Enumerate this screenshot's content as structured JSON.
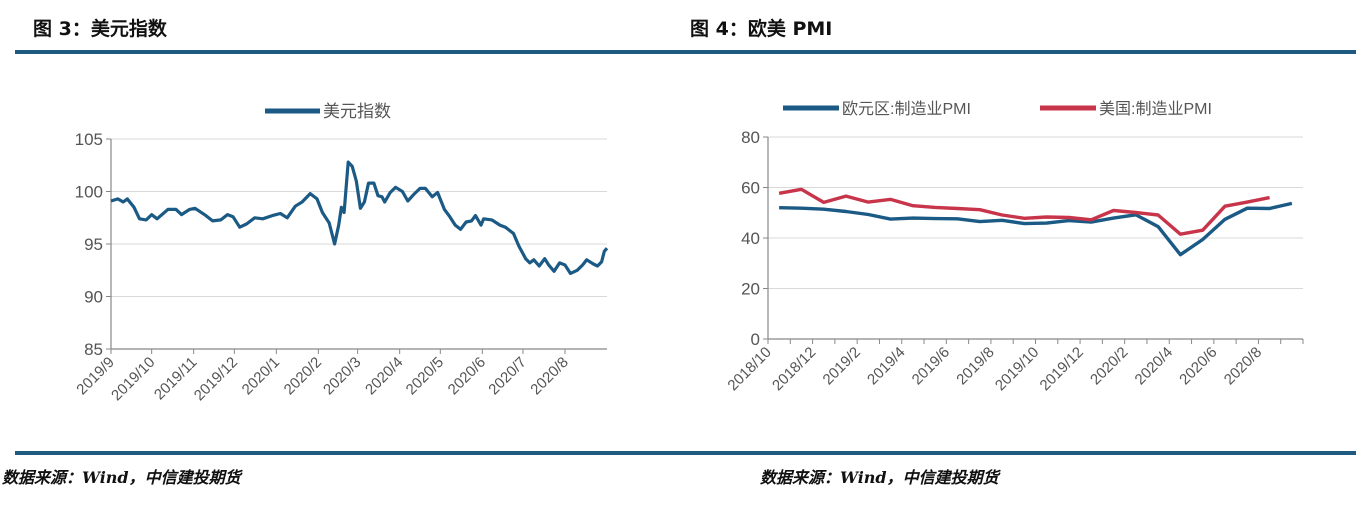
{
  "figures": [
    {
      "title": "图 3：美元指数",
      "source": "数据来源：Wind，中信建投期货"
    },
    {
      "title": "图 4：欧美 PMI",
      "source": "数据来源：Wind，中信建投期货"
    }
  ],
  "colors": {
    "rule": "#1f5a80",
    "blue": "#1b5a85",
    "red": "#c8354a",
    "grid": "#d9d9d9",
    "axis": "#888888"
  },
  "chart_data": [
    {
      "type": "line",
      "title": "",
      "xlabel": "",
      "ylabel": "",
      "ylim": [
        85,
        105
      ],
      "yticks": [
        "85",
        "90",
        "95",
        "100",
        "105"
      ],
      "xlim": [
        "2019-09-01",
        "2020-09-01"
      ],
      "xticks": [
        "2019/9",
        "2019/10",
        "2019/11",
        "2019/12",
        "2020/1",
        "2020/2",
        "2020/3",
        "2020/4",
        "2020/5",
        "2020/6",
        "2020/7",
        "2020/8"
      ],
      "grid": "horizontal",
      "legend": "top-center",
      "series": [
        {
          "name": "美元指数",
          "color": "#1b5a85",
          "points": [
            [
              "2019-09-01",
              99.1
            ],
            [
              "2019-09-06",
              99.3
            ],
            [
              "2019-09-10",
              99.0
            ],
            [
              "2019-09-13",
              99.3
            ],
            [
              "2019-09-18",
              98.5
            ],
            [
              "2019-09-22",
              97.4
            ],
            [
              "2019-09-27",
              97.3
            ],
            [
              "2019-10-01",
              97.8
            ],
            [
              "2019-10-05",
              97.4
            ],
            [
              "2019-10-13",
              98.3
            ],
            [
              "2019-10-19",
              98.3
            ],
            [
              "2019-10-23",
              97.8
            ],
            [
              "2019-10-29",
              98.3
            ],
            [
              "2019-11-02",
              98.4
            ],
            [
              "2019-11-10",
              97.7
            ],
            [
              "2019-11-15",
              97.2
            ],
            [
              "2019-11-21",
              97.3
            ],
            [
              "2019-11-26",
              97.8
            ],
            [
              "2019-11-30",
              97.6
            ],
            [
              "2019-12-05",
              96.6
            ],
            [
              "2019-12-10",
              96.9
            ],
            [
              "2019-12-16",
              97.5
            ],
            [
              "2019-12-22",
              97.4
            ],
            [
              "2019-12-29",
              97.7
            ],
            [
              "2020-01-04",
              97.9
            ],
            [
              "2020-01-09",
              97.5
            ],
            [
              "2020-01-15",
              98.6
            ],
            [
              "2020-01-20",
              99.0
            ],
            [
              "2020-01-26",
              99.8
            ],
            [
              "2020-01-31",
              99.3
            ],
            [
              "2020-02-04",
              98.0
            ],
            [
              "2020-02-09",
              97.0
            ],
            [
              "2020-02-13",
              95.0
            ],
            [
              "2020-02-16",
              96.8
            ],
            [
              "2020-02-18",
              98.5
            ],
            [
              "2020-02-20",
              98.0
            ],
            [
              "2020-02-23",
              102.8
            ],
            [
              "2020-02-26",
              102.4
            ],
            [
              "2020-02-29",
              101.0
            ],
            [
              "2020-03-03",
              98.4
            ],
            [
              "2020-03-06",
              99.0
            ],
            [
              "2020-03-09",
              100.8
            ],
            [
              "2020-03-13",
              100.8
            ],
            [
              "2020-03-16",
              99.6
            ],
            [
              "2020-03-19",
              99.5
            ],
            [
              "2020-03-21",
              99.0
            ],
            [
              "2020-03-25",
              99.9
            ],
            [
              "2020-03-29",
              100.4
            ],
            [
              "2020-04-03",
              100.0
            ],
            [
              "2020-04-07",
              99.1
            ],
            [
              "2020-04-12",
              99.8
            ],
            [
              "2020-04-16",
              100.3
            ],
            [
              "2020-04-20",
              100.3
            ],
            [
              "2020-04-25",
              99.5
            ],
            [
              "2020-04-29",
              99.9
            ],
            [
              "2020-05-04",
              98.3
            ],
            [
              "2020-05-08",
              97.6
            ],
            [
              "2020-05-12",
              96.8
            ],
            [
              "2020-05-16",
              96.4
            ],
            [
              "2020-05-20",
              97.1
            ],
            [
              "2020-05-24",
              97.2
            ],
            [
              "2020-05-27",
              97.7
            ],
            [
              "2020-05-31",
              96.8
            ],
            [
              "2020-06-02",
              97.4
            ],
            [
              "2020-06-08",
              97.3
            ],
            [
              "2020-06-14",
              96.8
            ],
            [
              "2020-06-18",
              96.6
            ],
            [
              "2020-06-24",
              96.0
            ],
            [
              "2020-06-28",
              94.8
            ],
            [
              "2020-07-03",
              93.6
            ],
            [
              "2020-07-06",
              93.2
            ],
            [
              "2020-07-09",
              93.5
            ],
            [
              "2020-07-13",
              92.9
            ],
            [
              "2020-07-17",
              93.6
            ],
            [
              "2020-07-20",
              93.0
            ],
            [
              "2020-07-24",
              92.4
            ],
            [
              "2020-07-28",
              93.2
            ],
            [
              "2020-08-01",
              93.0
            ],
            [
              "2020-08-05",
              92.2
            ],
            [
              "2020-08-10",
              92.5
            ],
            [
              "2020-08-14",
              93.0
            ],
            [
              "2020-08-17",
              93.5
            ],
            [
              "2020-08-22",
              93.1
            ],
            [
              "2020-08-25",
              92.9
            ],
            [
              "2020-08-28",
              93.3
            ],
            [
              "2020-08-30",
              94.3
            ],
            [
              "2020-09-01",
              94.6
            ]
          ]
        }
      ]
    },
    {
      "type": "line",
      "title": "",
      "xlabel": "",
      "ylabel": "",
      "ylim": [
        0,
        80
      ],
      "yticks": [
        "0",
        "20",
        "40",
        "60",
        "80"
      ],
      "xlim": [
        "2018/10",
        "2020/10"
      ],
      "xticks": [
        "2018/10",
        "2018/12",
        "2019/2",
        "2019/4",
        "2019/6",
        "2019/8",
        "2019/10",
        "2019/12",
        "2020/2",
        "2020/4",
        "2020/6",
        "2020/8"
      ],
      "grid": "horizontal",
      "legend": "top",
      "months": [
        "2018/10",
        "2018/11",
        "2018/12",
        "2019/1",
        "2019/2",
        "2019/3",
        "2019/4",
        "2019/5",
        "2019/6",
        "2019/7",
        "2019/8",
        "2019/9",
        "2019/10",
        "2019/11",
        "2019/12",
        "2020/1",
        "2020/2",
        "2020/3",
        "2020/4",
        "2020/5",
        "2020/6",
        "2020/7",
        "2020/8",
        "2020/9"
      ],
      "series": [
        {
          "name": "欧元区:制造业PMI",
          "color": "#1b5a85",
          "values": [
            52.0,
            51.8,
            51.4,
            50.5,
            49.3,
            47.5,
            47.9,
            47.7,
            47.6,
            46.5,
            47.0,
            45.7,
            45.9,
            46.9,
            46.3,
            47.9,
            49.2,
            44.5,
            33.4,
            39.4,
            47.4,
            51.8,
            51.7,
            53.7
          ]
        },
        {
          "name": "美国:制造业PMI",
          "color": "#c8354a",
          "values": [
            57.7,
            59.3,
            54.1,
            56.6,
            54.2,
            55.3,
            52.8,
            52.1,
            51.7,
            51.2,
            49.1,
            47.8,
            48.3,
            48.1,
            47.2,
            50.9,
            50.1,
            49.1,
            41.5,
            43.1,
            52.6,
            54.2,
            56.0
          ]
        }
      ]
    }
  ]
}
